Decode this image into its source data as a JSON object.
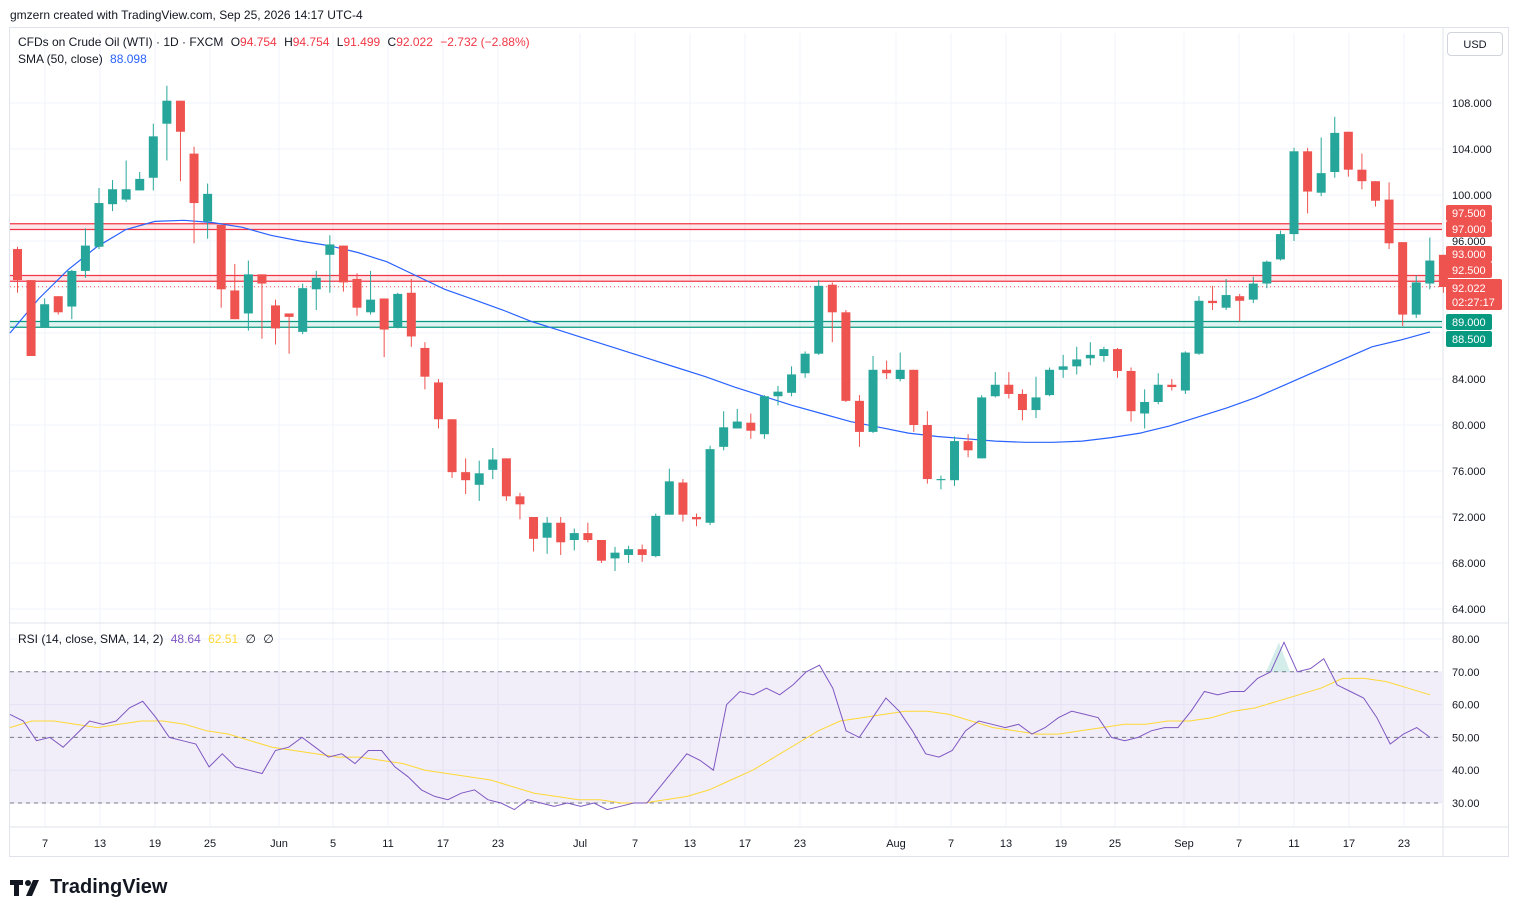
{
  "header": {
    "attribution": "gmzern created with TradingView.com, Sep 25, 2026 14:17 UTC-4"
  },
  "legend": {
    "symbol": "CFDs on Crude Oil (WTI) · 1D · FXCM",
    "o_label": "O",
    "o_value": "94.754",
    "h_label": "H",
    "h_value": "94.754",
    "l_label": "L",
    "l_value": "91.499",
    "c_label": "C",
    "c_value": "92.022",
    "change": "−2.732 (−2.88%)",
    "sma_label": "SMA (50, close)",
    "sma_value": "88.098",
    "rsi_label": "RSI (14, close, SMA, 14, 2)",
    "rsi_value": "48.64",
    "rsi_sma_value": "62.51",
    "rsi_extra1": "∅",
    "rsi_extra2": "∅"
  },
  "currency_button": "USD",
  "footer": {
    "brand": "TradingView"
  },
  "colors": {
    "up": "#26a69a",
    "down": "#ef5350",
    "sma": "#2962ff",
    "rsi": "#7e57c2",
    "rsi_sma": "#fdd835",
    "resistance": "#f23645",
    "support": "#089981"
  },
  "chart_data": [
    {
      "type": "candlestick",
      "ylim": [
        62,
        113
      ],
      "yticks": [
        "108.000",
        "104.000",
        "100.000",
        "96.000",
        "84.000",
        "80.000",
        "76.000",
        "72.000",
        "68.000",
        "64.000"
      ],
      "xticks": [
        "7",
        "13",
        "19",
        "25",
        "Jun",
        "5",
        "11",
        "17",
        "23",
        "Jul",
        "7",
        "13",
        "17",
        "23",
        "Aug",
        "7",
        "13",
        "19",
        "25",
        "Sep",
        "7",
        "11",
        "17",
        "23"
      ],
      "candles": [
        [
          95.3,
          92.6,
          95.5,
          91.5
        ],
        [
          92.6,
          86.0,
          92.6,
          88.8
        ],
        [
          88.5,
          90.5,
          91.0,
          88.5
        ],
        [
          91.2,
          89.8,
          91.2,
          89.6
        ],
        [
          90.3,
          93.4,
          93.5,
          89.2
        ],
        [
          93.4,
          95.6,
          97.1,
          92.8
        ],
        [
          95.5,
          99.3,
          100.6,
          95.3
        ],
        [
          99.2,
          100.5,
          101.3,
          98.6
        ],
        [
          99.6,
          100.5,
          103.0,
          99.4
        ],
        [
          100.4,
          101.4,
          102.0,
          100.4
        ],
        [
          101.5,
          105.1,
          106.2,
          100.4
        ],
        [
          106.2,
          108.2,
          109.5,
          103.0
        ],
        [
          108.2,
          105.5,
          108.2,
          101.2
        ],
        [
          103.6,
          99.3,
          104.2,
          95.8
        ],
        [
          97.7,
          100.1,
          101.0,
          96.2
        ],
        [
          97.4,
          91.8,
          97.4,
          90.2
        ],
        [
          91.7,
          89.2,
          94.0,
          89.2
        ],
        [
          89.7,
          93.1,
          94.3,
          88.2
        ],
        [
          93.1,
          92.3,
          93.1,
          87.5
        ],
        [
          90.4,
          88.4,
          90.9,
          87.0
        ],
        [
          89.7,
          89.4,
          89.7,
          86.2
        ],
        [
          88.1,
          91.9,
          92.3,
          87.9
        ],
        [
          91.8,
          92.8,
          93.4,
          90.0
        ],
        [
          94.8,
          95.7,
          96.5,
          91.5
        ],
        [
          95.6,
          92.4,
          95.6,
          91.6
        ],
        [
          92.7,
          90.2,
          93.2,
          89.5
        ],
        [
          89.8,
          90.9,
          93.4,
          89.6
        ],
        [
          91.0,
          88.3,
          91.0,
          85.9
        ],
        [
          88.5,
          91.4,
          91.5,
          88.4
        ],
        [
          91.5,
          87.7,
          92.7,
          86.8
        ],
        [
          86.7,
          84.2,
          87.2,
          83.1
        ],
        [
          83.7,
          80.5,
          84.0,
          79.7
        ],
        [
          80.5,
          75.9,
          80.5,
          75.4
        ],
        [
          75.9,
          75.2,
          77.1,
          74.0
        ],
        [
          74.8,
          75.8,
          76.9,
          73.4
        ],
        [
          76.1,
          77.0,
          78.0,
          75.3
        ],
        [
          77.1,
          73.8,
          77.1,
          73.4
        ],
        [
          73.8,
          73.1,
          74.1,
          71.8
        ],
        [
          72.0,
          70.1,
          72.0,
          69.0
        ],
        [
          70.2,
          71.5,
          72.0,
          68.8
        ],
        [
          71.5,
          69.8,
          72.0,
          68.7
        ],
        [
          70.0,
          70.6,
          71.0,
          69.1
        ],
        [
          70.6,
          70.0,
          71.5,
          69.8
        ],
        [
          70.0,
          68.2,
          70.0,
          68.0
        ],
        [
          68.4,
          68.9,
          69.4,
          67.3
        ],
        [
          68.7,
          69.2,
          69.5,
          68.0
        ],
        [
          69.2,
          68.7,
          69.6,
          68.1
        ],
        [
          68.6,
          72.1,
          72.3,
          68.5
        ],
        [
          72.2,
          75.1,
          76.2,
          72.2
        ],
        [
          75.0,
          72.2,
          75.3,
          71.6
        ],
        [
          72.0,
          71.8,
          72.3,
          71.2
        ],
        [
          71.5,
          77.9,
          78.2,
          71.3
        ],
        [
          78.1,
          79.8,
          81.2,
          77.8
        ],
        [
          79.7,
          80.3,
          81.4,
          79.7
        ],
        [
          80.2,
          79.5,
          81.0,
          78.8
        ],
        [
          79.2,
          82.5,
          82.6,
          78.8
        ],
        [
          82.5,
          82.9,
          83.4,
          81.7
        ],
        [
          82.8,
          84.4,
          85.1,
          82.5
        ],
        [
          84.5,
          86.2,
          86.4,
          84.1
        ],
        [
          86.2,
          92.1,
          92.6,
          86.1
        ],
        [
          92.2,
          89.8,
          92.4,
          87.2
        ],
        [
          89.8,
          82.1,
          90.0,
          82.0
        ],
        [
          82.1,
          79.4,
          82.6,
          78.1
        ],
        [
          79.4,
          84.8,
          86.0,
          79.3
        ],
        [
          84.8,
          84.5,
          85.6,
          84.0
        ],
        [
          84.0,
          84.8,
          86.3,
          83.8
        ],
        [
          84.8,
          80.0,
          84.8,
          79.4
        ],
        [
          80.0,
          75.3,
          81.2,
          74.9
        ],
        [
          75.2,
          75.3,
          75.6,
          74.4
        ],
        [
          75.2,
          78.6,
          79.0,
          74.7
        ],
        [
          78.6,
          77.8,
          79.2,
          77.2
        ],
        [
          77.1,
          82.4,
          82.6,
          77.1
        ],
        [
          82.5,
          83.5,
          84.6,
          82.4
        ],
        [
          83.5,
          82.7,
          84.6,
          82.3
        ],
        [
          82.7,
          81.3,
          83.1,
          80.4
        ],
        [
          81.3,
          82.4,
          84.2,
          80.6
        ],
        [
          82.6,
          84.8,
          85.0,
          82.5
        ],
        [
          84.8,
          85.1,
          86.1,
          84.1
        ],
        [
          85.1,
          85.7,
          86.8,
          84.4
        ],
        [
          85.8,
          86.1,
          87.2,
          85.2
        ],
        [
          86.0,
          86.6,
          86.8,
          85.5
        ],
        [
          86.6,
          84.7,
          86.7,
          84.1
        ],
        [
          84.7,
          81.2,
          85.0,
          80.3
        ],
        [
          81.0,
          82.0,
          83.1,
          79.7
        ],
        [
          82.0,
          83.5,
          84.5,
          81.8
        ],
        [
          83.5,
          83.3,
          84.0,
          83.0
        ],
        [
          83.0,
          86.3,
          86.4,
          82.7
        ],
        [
          86.2,
          90.8,
          91.2,
          86.1
        ],
        [
          90.8,
          90.6,
          92.1,
          90.0
        ],
        [
          90.2,
          91.3,
          92.7,
          90.0
        ],
        [
          91.2,
          90.8,
          91.4,
          89.0
        ],
        [
          90.9,
          92.3,
          92.9,
          90.6
        ],
        [
          92.3,
          94.2,
          94.3,
          91.9
        ],
        [
          94.4,
          96.6,
          96.9,
          94.3
        ],
        [
          96.6,
          103.8,
          104.1,
          96.0
        ],
        [
          103.8,
          100.3,
          104.1,
          98.4
        ],
        [
          100.2,
          101.9,
          105.0,
          99.9
        ],
        [
          102.0,
          105.4,
          106.8,
          101.5
        ],
        [
          105.5,
          102.2,
          105.5,
          101.6
        ],
        [
          102.2,
          101.2,
          103.6,
          100.5
        ],
        [
          101.2,
          99.5,
          101.2,
          99.0
        ],
        [
          99.6,
          95.8,
          101.1,
          95.3
        ],
        [
          95.9,
          89.6,
          95.9,
          88.6
        ],
        [
          89.6,
          92.4,
          93.0,
          89.3
        ],
        [
          92.3,
          94.3,
          96.3,
          91.8
        ],
        [
          94.8,
          92.0,
          94.8,
          91.5
        ]
      ],
      "sma": [
        88.0,
        91.0,
        93.5,
        95.5,
        97.0,
        97.7,
        97.8,
        97.6,
        97.2,
        96.5,
        96.0,
        95.6,
        95.0,
        94.2,
        93.0,
        91.8,
        90.9,
        90.0,
        89.0,
        88.2,
        87.4,
        86.6,
        85.8,
        85.0,
        84.2,
        83.3,
        82.5,
        81.7,
        81.0,
        80.3,
        79.8,
        79.3,
        79.0,
        78.8,
        78.6,
        78.5,
        78.5,
        78.6,
        78.9,
        79.3,
        79.9,
        80.7,
        81.5,
        82.4,
        83.5,
        84.6,
        85.7,
        86.8,
        87.4,
        88.1
      ],
      "rsi": [
        57,
        55,
        49,
        50,
        47,
        51,
        55,
        54,
        55,
        59,
        61,
        56,
        50,
        49,
        48,
        41,
        45,
        41,
        40,
        39,
        46,
        47,
        50,
        47,
        44,
        45,
        42,
        46,
        46,
        41,
        38,
        34,
        32,
        31,
        33,
        34,
        31,
        30,
        28,
        31,
        30,
        29,
        30,
        29,
        30,
        28,
        29,
        30,
        30,
        35,
        40,
        45,
        43,
        40,
        60,
        64,
        63,
        65,
        63,
        66,
        70,
        72,
        65,
        52,
        50,
        56,
        62,
        58,
        52,
        45,
        44,
        46,
        52,
        55,
        54,
        53,
        54,
        51,
        53,
        56,
        58,
        57,
        56,
        50,
        49,
        50,
        52,
        53,
        53,
        58,
        64,
        63,
        64,
        64,
        68,
        70,
        79,
        70,
        71,
        74,
        66,
        64,
        62,
        56,
        48,
        51,
        53,
        50
      ],
      "rsi_sma": [
        53,
        55,
        55,
        54,
        53,
        54,
        55,
        55,
        54,
        52,
        51,
        49,
        47,
        46,
        45,
        44,
        44,
        43,
        42,
        40,
        39,
        38,
        37,
        35,
        33,
        32,
        31,
        31,
        30,
        30,
        31,
        32,
        34,
        37,
        40,
        44,
        48,
        52,
        55,
        56,
        57,
        58,
        58,
        57,
        55,
        53,
        52,
        51,
        51,
        52,
        53,
        54,
        54,
        55,
        55,
        56,
        58,
        59,
        61,
        63,
        65,
        68,
        68,
        67,
        65,
        63
      ]
    }
  ]
}
